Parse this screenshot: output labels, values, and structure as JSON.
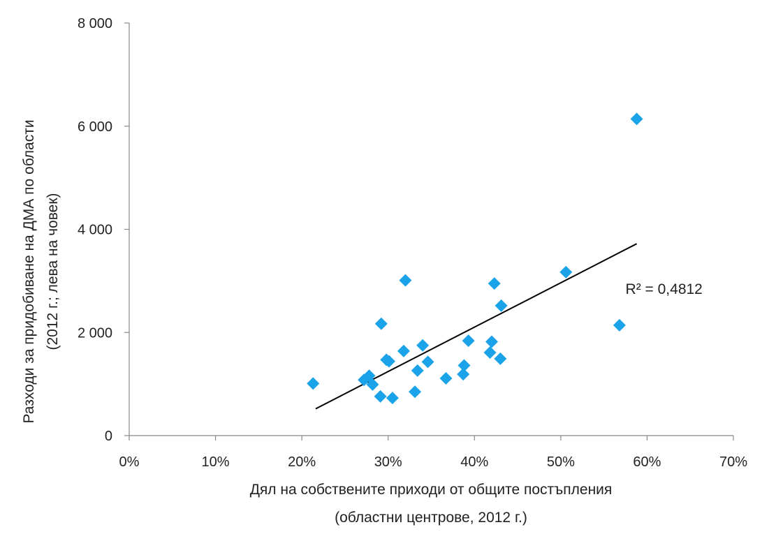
{
  "chart_data": {
    "type": "scatter",
    "title": "",
    "xlabel_lines": [
      "Дял на собствените приходи от общите постъпления",
      "(областни центрове, 2012 г.)"
    ],
    "ylabel_lines": [
      "Разходи за придобиване на ДМА по области",
      "(2012 г.; лева на човек)"
    ],
    "xlim": [
      0,
      0.7
    ],
    "ylim": [
      0,
      8000
    ],
    "x_ticks": [
      0,
      0.1,
      0.2,
      0.3,
      0.4,
      0.5,
      0.6,
      0.7
    ],
    "x_tick_labels": [
      "0%",
      "10%",
      "20%",
      "30%",
      "40%",
      "50%",
      "60%",
      "70%"
    ],
    "y_ticks": [
      0,
      2000,
      4000,
      6000,
      8000
    ],
    "y_tick_labels": [
      "0",
      "2 000",
      "4 000",
      "6 000",
      "8 000"
    ],
    "grid": false,
    "marker_color": "#1aa3e8",
    "points": [
      {
        "x": 0.213,
        "y": 1010
      },
      {
        "x": 0.272,
        "y": 1080
      },
      {
        "x": 0.278,
        "y": 1160
      },
      {
        "x": 0.282,
        "y": 990
      },
      {
        "x": 0.291,
        "y": 760
      },
      {
        "x": 0.292,
        "y": 2170
      },
      {
        "x": 0.298,
        "y": 1470
      },
      {
        "x": 0.301,
        "y": 1440
      },
      {
        "x": 0.305,
        "y": 730
      },
      {
        "x": 0.318,
        "y": 1640
      },
      {
        "x": 0.32,
        "y": 3010
      },
      {
        "x": 0.331,
        "y": 850
      },
      {
        "x": 0.334,
        "y": 1260
      },
      {
        "x": 0.34,
        "y": 1750
      },
      {
        "x": 0.346,
        "y": 1430
      },
      {
        "x": 0.367,
        "y": 1110
      },
      {
        "x": 0.387,
        "y": 1190
      },
      {
        "x": 0.388,
        "y": 1360
      },
      {
        "x": 0.393,
        "y": 1840
      },
      {
        "x": 0.418,
        "y": 1610
      },
      {
        "x": 0.42,
        "y": 1820
      },
      {
        "x": 0.423,
        "y": 2950
      },
      {
        "x": 0.43,
        "y": 1490
      },
      {
        "x": 0.431,
        "y": 2520
      },
      {
        "x": 0.506,
        "y": 3170
      },
      {
        "x": 0.568,
        "y": 2140
      },
      {
        "x": 0.588,
        "y": 6140
      }
    ],
    "trendline": {
      "x": [
        0.216,
        0.588
      ],
      "y": [
        520,
        3720
      ],
      "color": "#000000"
    },
    "annotation": {
      "text": "R² = 0,4812",
      "x": 0.575,
      "y": 2750
    }
  }
}
